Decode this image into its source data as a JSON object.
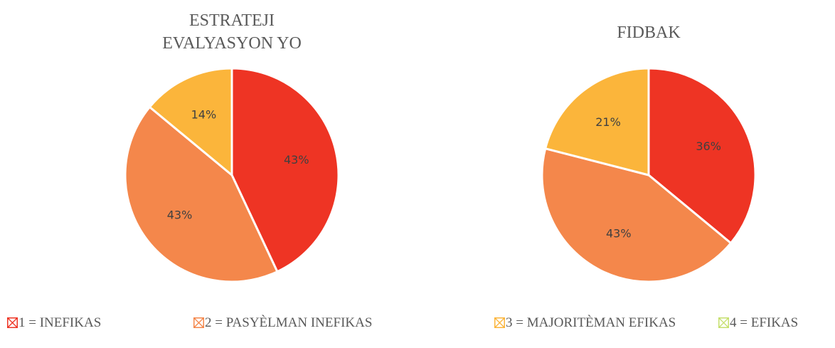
{
  "legend": [
    {
      "label": "1 = INEFIKAS",
      "color": "#ee3424"
    },
    {
      "label": "2 = PASYÈLMAN INEFIKAS",
      "color": "#f4874b"
    },
    {
      "label": "3 = MAJORITÈMAN EFIKAS",
      "color": "#fbb53b"
    },
    {
      "label": "4 = EFIKAS",
      "color": "#c5df6c"
    }
  ],
  "chart_data": [
    {
      "type": "pie",
      "title": [
        "ESTRATEJI",
        "EVALYASYON YO"
      ],
      "values": [
        43,
        43,
        14
      ],
      "value_labels": [
        "43%",
        "43%",
        "14%"
      ]
    },
    {
      "type": "pie",
      "title": [
        "FIDBAK"
      ],
      "values": [
        36,
        43,
        21
      ],
      "value_labels": [
        "36%",
        "43%",
        "21%"
      ]
    }
  ]
}
